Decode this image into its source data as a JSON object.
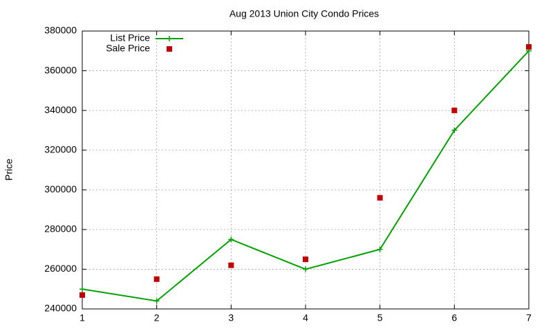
{
  "chart_data": {
    "type": "line",
    "title": "Aug 2013 Union City Condo Prices",
    "y_label": "Price",
    "x": [
      1,
      2,
      3,
      4,
      5,
      6,
      7
    ],
    "series": [
      {
        "name": "List Price",
        "color": "#00a000",
        "style": "linespoints",
        "values": [
          250000,
          244000,
          275000,
          260000,
          270000,
          330000,
          370000
        ]
      },
      {
        "name": "Sale Price",
        "color": "#c00000",
        "style": "points",
        "values": [
          247000,
          255000,
          262000,
          265000,
          296000,
          340000,
          372000
        ]
      }
    ],
    "xlim": [
      1,
      7
    ],
    "xticks": [
      1,
      2,
      3,
      4,
      5,
      6,
      7
    ],
    "ylim": [
      240000,
      380000
    ],
    "yticks": [
      240000,
      260000,
      280000,
      300000,
      320000,
      340000,
      360000,
      380000
    ],
    "grid": true,
    "legend": "top-left"
  }
}
